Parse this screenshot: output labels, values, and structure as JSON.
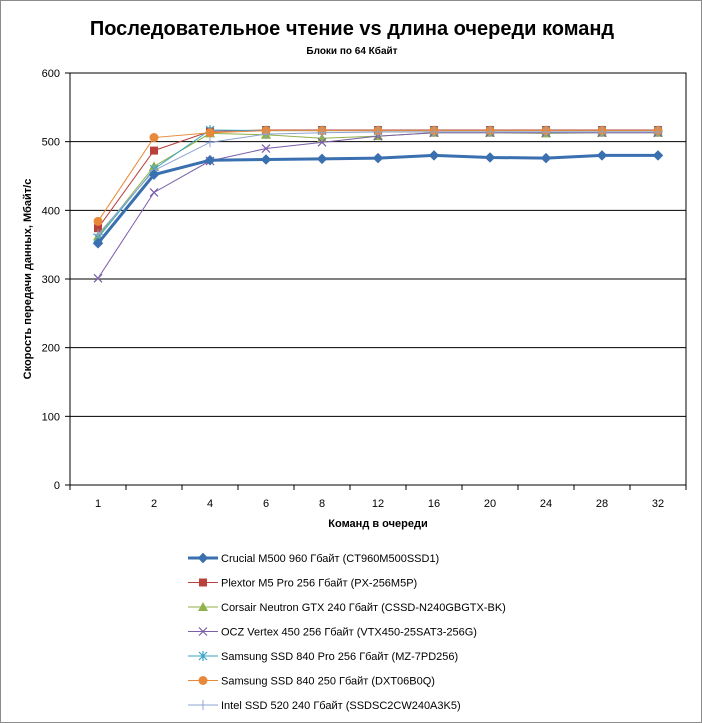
{
  "chart_data": {
    "type": "line",
    "title": "Последовательное чтение vs длина очереди команд",
    "subtitle": "Блоки  по 64 Кбайт",
    "xlabel": "Команд  в очереди",
    "ylabel": "Скорость  передачи данных, Мбайт/с",
    "categories": [
      "1",
      "2",
      "4",
      "6",
      "8",
      "12",
      "16",
      "20",
      "24",
      "28",
      "32"
    ],
    "ylim": [
      0,
      600
    ],
    "yticks": [
      0,
      100,
      200,
      300,
      400,
      500,
      600
    ],
    "grid": "horizontal",
    "legend_position": "bottom",
    "series": [
      {
        "name": "Crucial M500 960 Гбайт (CT960M500SSD1)",
        "color": "#3a6fb0",
        "marker": "diamond",
        "values": [
          352,
          452,
          473,
          474,
          475,
          476,
          480,
          477,
          476,
          480,
          480
        ]
      },
      {
        "name": "Plextor M5 Pro 256 Гбайт (PX-256M5P)",
        "color": "#b8413c",
        "marker": "square",
        "values": [
          374,
          487,
          515,
          517,
          517,
          517,
          517,
          517,
          517,
          517,
          517
        ]
      },
      {
        "name": "Corsair Neutron GTX 240 Гбайт (CSSD-N240GBGTX-BK)",
        "color": "#8fb24a",
        "marker": "triangle",
        "values": [
          362,
          464,
          512,
          510,
          505,
          508,
          513,
          513,
          512,
          513,
          513
        ]
      },
      {
        "name": "OCZ Vertex  450 256 Гбайт (VTX450-25SAT3-256G)",
        "color": "#7a5ea8",
        "marker": "x",
        "values": [
          301,
          426,
          472,
          490,
          499,
          508,
          513,
          513,
          513,
          513,
          513
        ]
      },
      {
        "name": "Samsung SSD 840 Pro 256 Гбайт (MZ-7PD256)",
        "color": "#3aa5c2",
        "marker": "star",
        "values": [
          360,
          460,
          517,
          516,
          516,
          516,
          516,
          516,
          516,
          516,
          516
        ]
      },
      {
        "name": "Samsung SSD 840 250 Гбайт (DXT06B0Q)",
        "color": "#e8893a",
        "marker": "circle",
        "values": [
          384,
          506,
          513,
          516,
          516,
          516,
          516,
          516,
          516,
          516,
          516
        ]
      },
      {
        "name": "Intel SSD 520 240 Гбайт (SSDSC2CW240A3K5)",
        "color": "#8da4cf",
        "marker": "plus",
        "values": [
          365,
          458,
          499,
          511,
          513,
          514,
          514,
          514,
          514,
          514,
          514
        ]
      }
    ]
  }
}
